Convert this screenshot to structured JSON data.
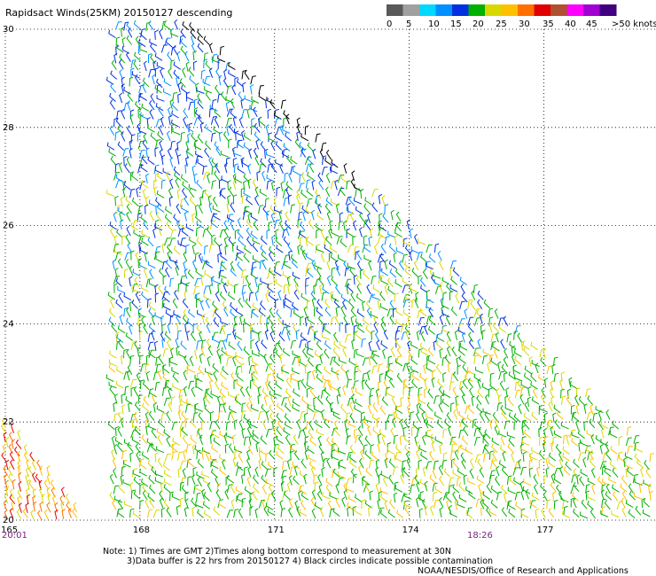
{
  "title": "Rapidsact Winds(25KM) 20150127 descending",
  "legend": {
    "ticks": [
      "0",
      "5",
      "10",
      "15",
      "20",
      "25",
      "30",
      "35",
      "40",
      "45",
      ">50 knots"
    ],
    "colors": [
      "#595959",
      "#a0a0a0",
      "#00d8ff",
      "#0090ff",
      "#0030e0",
      "#00b000",
      "#d8d800",
      "#ffc000",
      "#ff7000",
      "#e00000",
      "#b05030",
      "#ff00ff",
      "#a000d0",
      "#400080"
    ]
  },
  "map": {
    "lon_ticks": [
      "165",
      "168",
      "171",
      "174",
      "177"
    ],
    "lat_ticks": [
      "30",
      "28",
      "26",
      "24",
      "22",
      "20"
    ],
    "lon_range": [
      165,
      179.5
    ],
    "lat_range": [
      20,
      30
    ]
  },
  "times": {
    "left": "20:01",
    "middle": "18:26"
  },
  "notes": {
    "line1": "Note: 1) Times are GMT 2)Times along bottom correspond to measurement at 30N",
    "line2": "3)Data buffer is 22 hrs from 20150127 4) Black circles indicate possible contamination",
    "line3": "NOAA/NESDIS/Office of Research and Applications"
  }
}
